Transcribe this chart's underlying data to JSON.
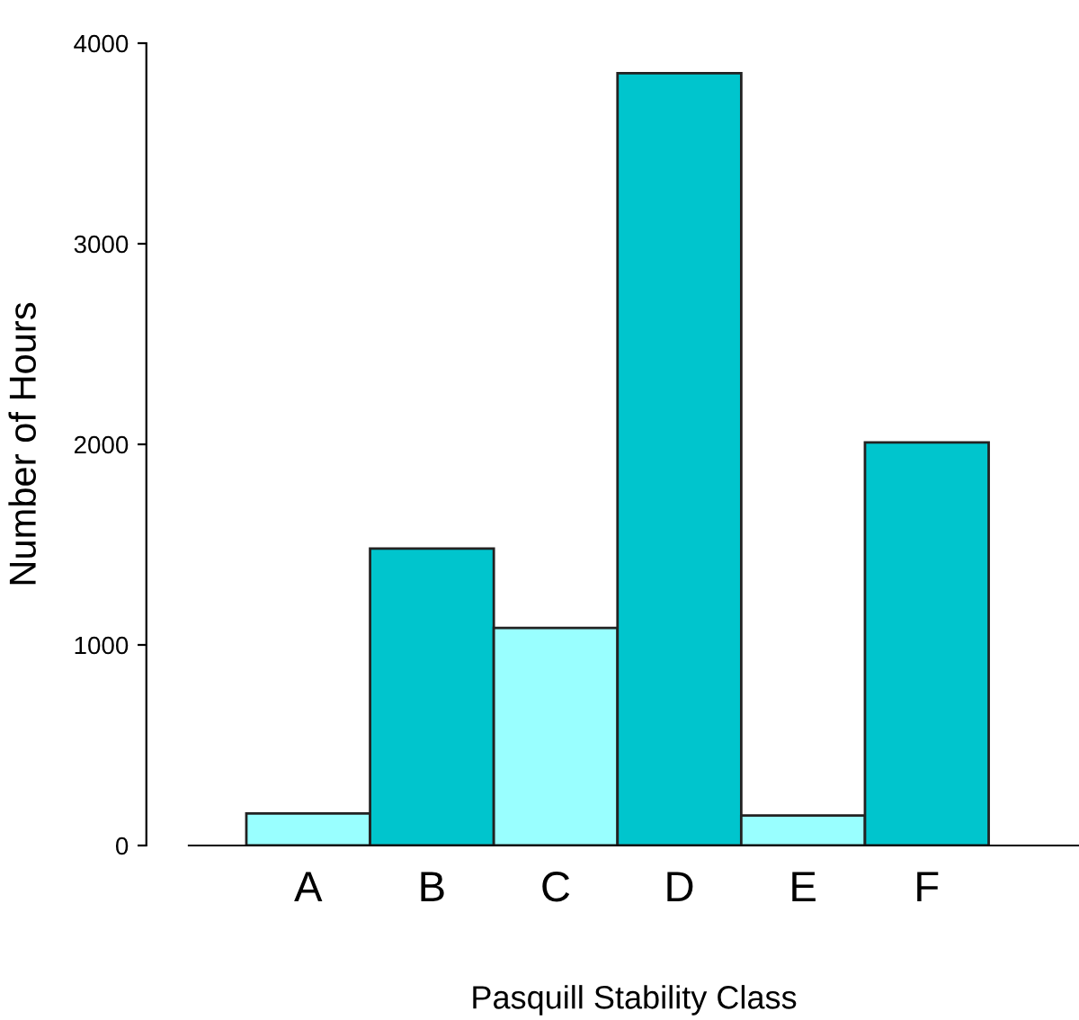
{
  "chart_data": {
    "type": "bar",
    "categories": [
      "A",
      "B",
      "C",
      "D",
      "E",
      "F"
    ],
    "values": [
      160,
      1480,
      1085,
      3850,
      150,
      2010
    ],
    "colors": [
      "#99ffff",
      "#00c5cd",
      "#99ffff",
      "#00c5cd",
      "#99ffff",
      "#00c5cd"
    ],
    "xlabel": "Pasquill Stability Class",
    "ylabel": "Number of Hours",
    "ylim": [
      0,
      4000
    ],
    "yticks": [
      0,
      1000,
      2000,
      3000,
      4000
    ],
    "grid": false
  }
}
